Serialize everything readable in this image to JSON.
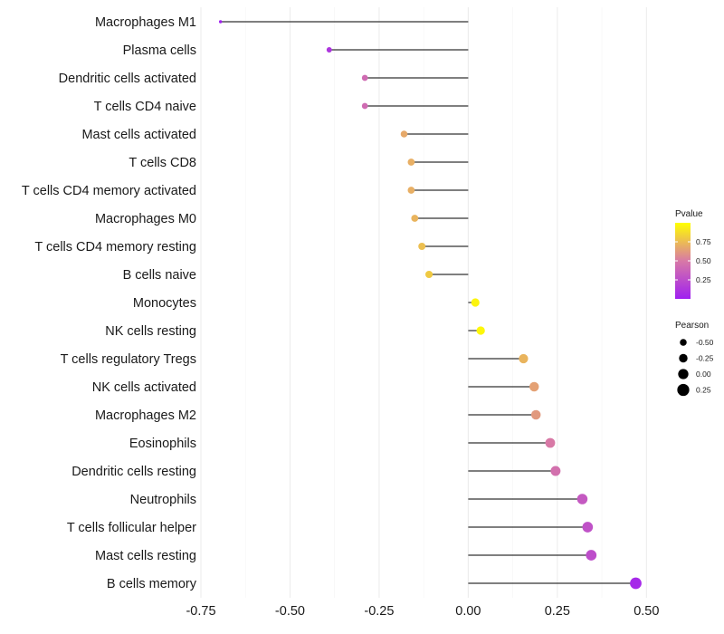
{
  "chart_data": {
    "type": "lollipop",
    "categories": [
      "Macrophages M1",
      "Plasma cells",
      "Dendritic cells activated",
      "T cells CD4 naive",
      "Mast cells activated",
      "T cells CD8",
      "T cells CD4 memory activated",
      "Macrophages M0",
      "T cells CD4 memory resting",
      "B cells naive",
      "Monocytes",
      "NK cells resting",
      "T cells regulatory  Tregs ",
      "NK cells activated",
      "Macrophages M2",
      "Eosinophils",
      "Dendritic cells resting",
      "Neutrophils",
      "T cells follicular helper",
      "Mast cells resting",
      "B cells memory"
    ],
    "pearson": [
      -0.695,
      -0.39,
      -0.29,
      -0.29,
      -0.18,
      -0.16,
      -0.16,
      -0.15,
      -0.13,
      -0.11,
      0.02,
      0.035,
      0.155,
      0.185,
      0.19,
      0.23,
      0.245,
      0.32,
      0.335,
      0.345,
      0.47
    ],
    "pvalue": [
      0.01,
      0.12,
      0.42,
      0.42,
      0.68,
      0.7,
      0.7,
      0.72,
      0.76,
      0.8,
      0.96,
      0.97,
      0.72,
      0.65,
      0.62,
      0.5,
      0.45,
      0.32,
      0.28,
      0.26,
      0.05
    ],
    "xlim": [
      -0.75,
      0.55
    ],
    "x_ticks": [
      -0.75,
      -0.5,
      -0.25,
      0,
      0.25,
      0.5
    ],
    "x_tick_labels": [
      "-0.75",
      "-0.50",
      "-0.25",
      "0.00",
      "0.25",
      "0.50"
    ],
    "xlabel": "",
    "ylabel": "",
    "legend_color": {
      "title": "Pvalue",
      "range": [
        0,
        1
      ],
      "ticks": [
        0.25,
        0.5,
        0.75
      ],
      "tick_labels": [
        "0.25",
        "0.50",
        "0.75"
      ],
      "low_color": "#a020f0",
      "mid_color": "#d879a6",
      "high_color": "#ffff00"
    },
    "legend_size": {
      "title": "Pearson",
      "values": [
        -0.5,
        -0.25,
        0,
        0.25
      ],
      "labels": [
        "-0.50",
        "-0.25",
        "0.00",
        "0.25"
      ]
    },
    "legend_position": "right",
    "grid": true
  }
}
